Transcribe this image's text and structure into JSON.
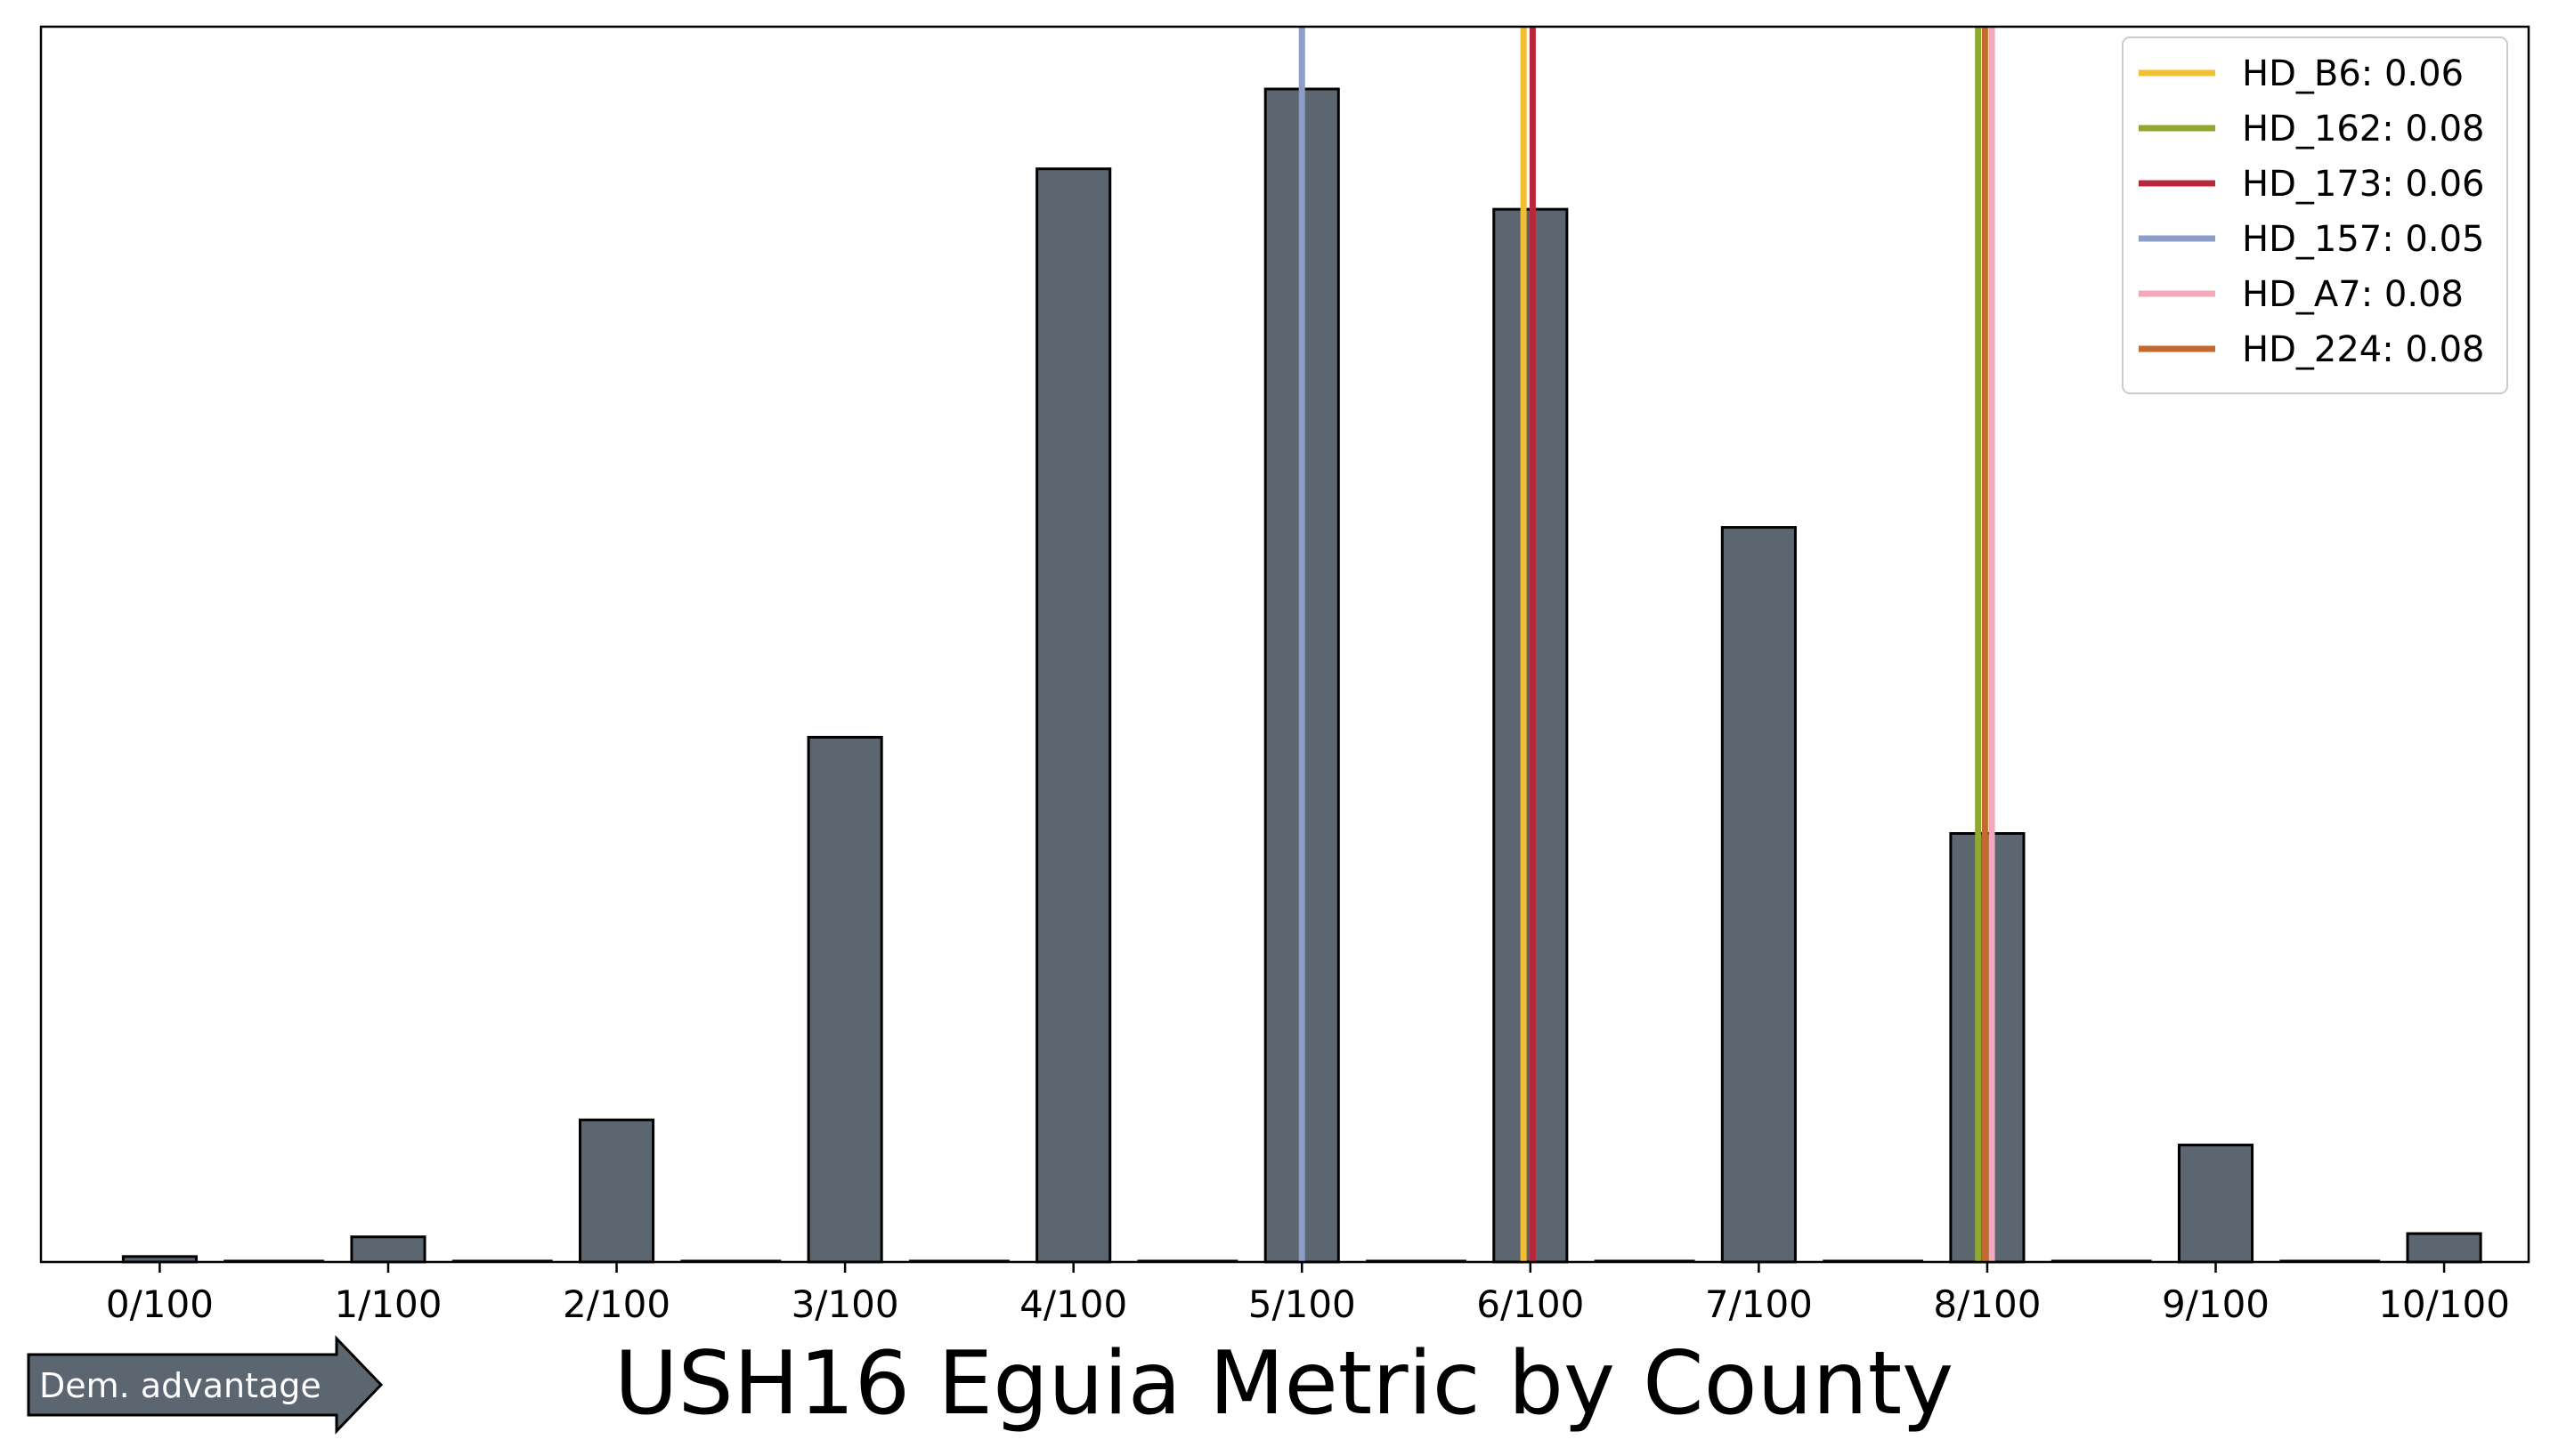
{
  "chart_data": {
    "type": "bar",
    "title": "USH16 Eguia Metric by County",
    "xlabel": "",
    "ylabel": "",
    "categories": [
      "0/100",
      "1/100",
      "2/100",
      "3/100",
      "4/100",
      "5/100",
      "6/100",
      "7/100",
      "8/100",
      "9/100",
      "10/100"
    ],
    "x": [
      0,
      0.01,
      0.02,
      0.03,
      0.04,
      0.05,
      0.06,
      0.07,
      0.08,
      0.09,
      0.1
    ],
    "values": [
      0.005,
      0.023,
      0.13,
      0.48,
      1.0,
      1.073,
      0.963,
      0.672,
      0.392,
      0.107,
      0.026
    ],
    "xlim": [
      -0.0052,
      0.1037
    ],
    "ylim": [
      0,
      1.13
    ],
    "y_ticks_visible": false,
    "bar_color": "#5c6670",
    "bar_edge_color": "#000000",
    "grid": false,
    "legend_position": "top-right",
    "reference_lines": [
      {
        "name": "HD_B6",
        "label": "HD_B6: 0.06",
        "x": 0.0597,
        "color": "#f0c030"
      },
      {
        "name": "HD_162",
        "label": "HD_162: 0.08",
        "x": 0.0796,
        "color": "#8fa832"
      },
      {
        "name": "HD_173",
        "label": "HD_173: 0.06",
        "x": 0.0601,
        "color": "#b8283a"
      },
      {
        "name": "HD_157",
        "label": "HD_157: 0.05",
        "x": 0.05,
        "color": "#8a9ec8"
      },
      {
        "name": "HD_A7",
        "label": "HD_A7: 0.08",
        "x": 0.0802,
        "color": "#f2aab8"
      },
      {
        "name": "HD_224",
        "label": "HD_224: 0.08",
        "x": 0.0799,
        "color": "#c46a2e"
      }
    ]
  },
  "annotation": {
    "arrow_label": "Dem. advantage",
    "arrow_color": "#5c6670"
  }
}
